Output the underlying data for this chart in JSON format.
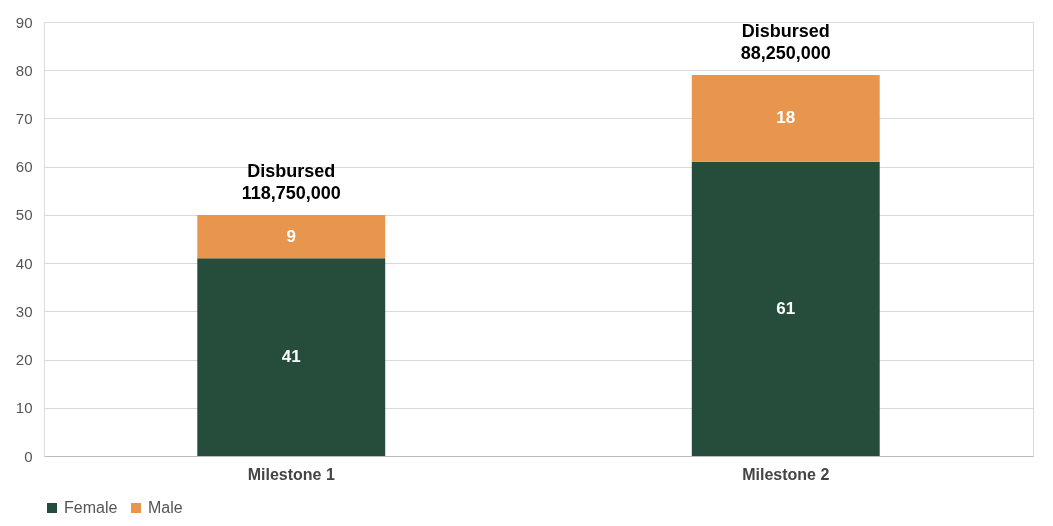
{
  "chart_data": {
    "type": "bar",
    "stacked": true,
    "categories": [
      "Milestone 1",
      "Milestone 2"
    ],
    "series": [
      {
        "name": "Female",
        "color": "#264d3c",
        "values": [
          41,
          61
        ]
      },
      {
        "name": "Male",
        "color": "#e8964d",
        "values": [
          9,
          18
        ]
      }
    ],
    "ylim": [
      0,
      90
    ],
    "yticks": [
      0,
      10,
      20,
      30,
      40,
      50,
      60,
      70,
      80,
      90
    ],
    "grid": "y",
    "legend": "bottom",
    "data_labels": true,
    "annotations": [
      "Disbursed\n118,750,000",
      "Disbursed\n88,250,000"
    ]
  }
}
